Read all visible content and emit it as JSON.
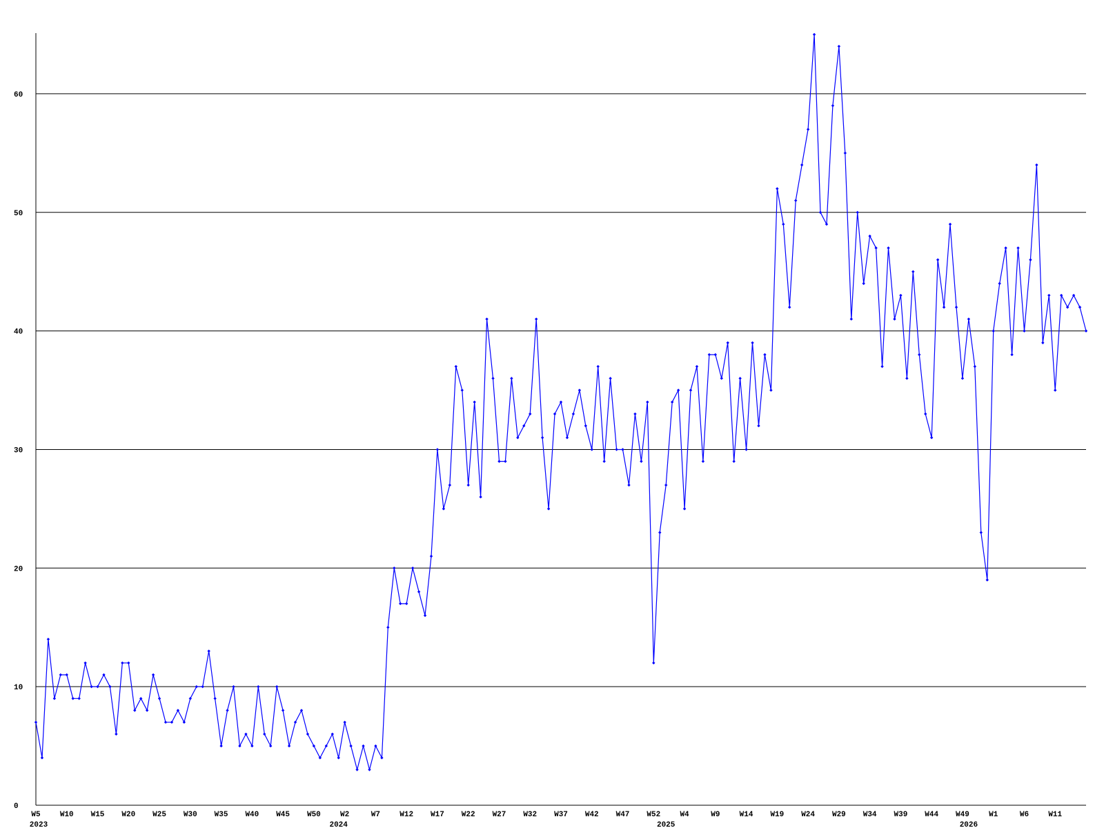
{
  "chart_data": {
    "type": "line",
    "categories": [
      "W5",
      null,
      null,
      null,
      null,
      "W10",
      null,
      null,
      null,
      null,
      "W15",
      null,
      null,
      null,
      null,
      "W20",
      null,
      null,
      null,
      null,
      "W25",
      null,
      null,
      null,
      null,
      "W30",
      null,
      null,
      null,
      null,
      "W35",
      null,
      null,
      null,
      null,
      "W40",
      null,
      null,
      null,
      null,
      "W45",
      null,
      null,
      null,
      null,
      "W50",
      null,
      null,
      null,
      null,
      "W2",
      null,
      null,
      null,
      null,
      "W7",
      null,
      null,
      null,
      null,
      "W12",
      null,
      null,
      null,
      null,
      "W17",
      null,
      null,
      null,
      null,
      "W22",
      null,
      null,
      null,
      null,
      "W27",
      null,
      null,
      null,
      null,
      "W32",
      null,
      null,
      null,
      null,
      "W37",
      null,
      null,
      null,
      null,
      "W42",
      null,
      null,
      null,
      null,
      "W47",
      null,
      null,
      null,
      null,
      "W52",
      null,
      null,
      null,
      null,
      "W4",
      null,
      null,
      null,
      null,
      "W9",
      null,
      null,
      null,
      null,
      "W14",
      null,
      null,
      null,
      null,
      "W19",
      null,
      null,
      null,
      null,
      "W24",
      null,
      null,
      null,
      null,
      "W29",
      null,
      null,
      null,
      null,
      "W34",
      null,
      null,
      null,
      null,
      "W39",
      null,
      null,
      null,
      null,
      "W44",
      null,
      null,
      null,
      null,
      "W49",
      null,
      null,
      null,
      null,
      "W1",
      null,
      null,
      null,
      null,
      "W6",
      null,
      null,
      null,
      null,
      "W11",
      null,
      null,
      null,
      null,
      null
    ],
    "year_labels": [
      "2023",
      null,
      null,
      null,
      null,
      null,
      null,
      null,
      null,
      null,
      null,
      null,
      null,
      null,
      null,
      null,
      null,
      null,
      null,
      null,
      null,
      null,
      null,
      null,
      null,
      null,
      null,
      null,
      null,
      null,
      null,
      null,
      null,
      null,
      null,
      null,
      null,
      null,
      null,
      null,
      null,
      null,
      null,
      null,
      null,
      null,
      null,
      null,
      null,
      "2024",
      null,
      null,
      null,
      null,
      null,
      null,
      null,
      null,
      null,
      null,
      null,
      null,
      null,
      null,
      null,
      null,
      null,
      null,
      null,
      null,
      null,
      null,
      null,
      null,
      null,
      null,
      null,
      null,
      null,
      null,
      null,
      null,
      null,
      null,
      null,
      null,
      null,
      null,
      null,
      null,
      null,
      null,
      null,
      null,
      null,
      null,
      null,
      null,
      null,
      null,
      null,
      null,
      "2025",
      null,
      null,
      null,
      null,
      null,
      null,
      null,
      null,
      null,
      null,
      null,
      null,
      null,
      null,
      null,
      null,
      null,
      null,
      null,
      null,
      null,
      null,
      null,
      null,
      null,
      null,
      null,
      null,
      null,
      null,
      null,
      null,
      null,
      null,
      null,
      null,
      null,
      null,
      null,
      null,
      null,
      null,
      null,
      null,
      null,
      null,
      null,
      null,
      "2026",
      null,
      null,
      null,
      null,
      null,
      null,
      null,
      null,
      null,
      null,
      null,
      null,
      null,
      null,
      null
    ],
    "series": [
      {
        "color": "#0000ff",
        "values": [
          7,
          4,
          14,
          9,
          11,
          11,
          9,
          9,
          12,
          10,
          10,
          11,
          10,
          6,
          12,
          12,
          8,
          9,
          8,
          11,
          9,
          7,
          7,
          8,
          7,
          9,
          10,
          10,
          13,
          9,
          5,
          8,
          10,
          5,
          6,
          5,
          10,
          6,
          5,
          10,
          8,
          5,
          7,
          8,
          6,
          5,
          4,
          5,
          6,
          4,
          7,
          5,
          3,
          5,
          3,
          5,
          4,
          15,
          20,
          17,
          17,
          20,
          18,
          16,
          21,
          30,
          25,
          27,
          37,
          35,
          27,
          34,
          26,
          41,
          36,
          29,
          29,
          36,
          31,
          32,
          33,
          41,
          31,
          25,
          33,
          34,
          31,
          33,
          35,
          32,
          30,
          37,
          29,
          36,
          30,
          30,
          27,
          33,
          29,
          34,
          12,
          23,
          27,
          34,
          35,
          25,
          35,
          37,
          29,
          38,
          38,
          36,
          39,
          29,
          36,
          30,
          39,
          32,
          38,
          35,
          52,
          49,
          42,
          51,
          54,
          57,
          65,
          50,
          49,
          59,
          64,
          55,
          41,
          50,
          44,
          48,
          47,
          37,
          47,
          41,
          43,
          36,
          45,
          38,
          33,
          31,
          46,
          42,
          49,
          42,
          36,
          41,
          37,
          23,
          19,
          40,
          44,
          47,
          38,
          47,
          40,
          46,
          54,
          39,
          43,
          35,
          43,
          42,
          43,
          42,
          40
        ]
      }
    ],
    "ylim": [
      0,
      65
    ],
    "yticks": [
      0,
      10,
      20,
      30,
      40,
      50,
      60
    ],
    "grid": true
  }
}
